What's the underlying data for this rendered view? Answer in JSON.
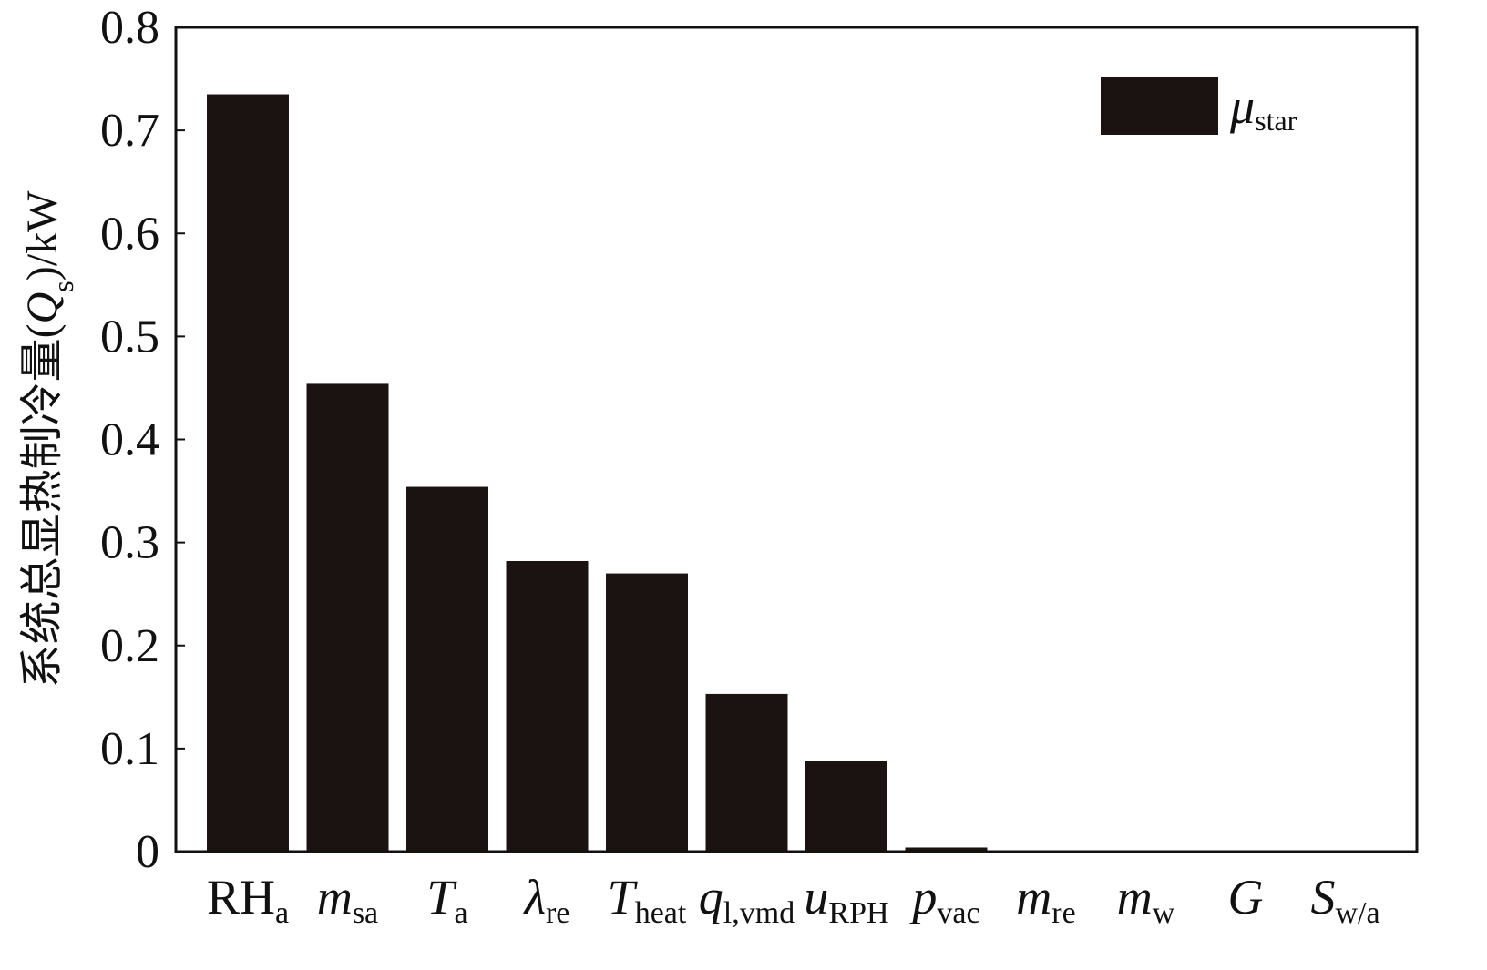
{
  "chart_data": {
    "type": "bar",
    "ylabel": [
      {
        "text": "系统总显热制冷量("
      },
      {
        "text": "Q",
        "italic": true
      },
      {
        "text": "s",
        "sub": true
      },
      {
        "text": ")/kW"
      }
    ],
    "categories": [
      {
        "text": "RH",
        "sub": "a",
        "italic": false
      },
      {
        "text": "m",
        "sub": "sa",
        "italic": true
      },
      {
        "text": "T",
        "sub": "a",
        "italic": true
      },
      {
        "text": "λ",
        "sub": "re",
        "italic": true
      },
      {
        "text": "T",
        "sub": "heat",
        "italic": true
      },
      {
        "text": "q",
        "sub": "l,vmd",
        "italic": true
      },
      {
        "text": "u",
        "sub": "RPH",
        "italic": true
      },
      {
        "text": "p",
        "sub": "vac",
        "italic": true
      },
      {
        "text": "m",
        "sub": "re",
        "italic": true
      },
      {
        "text": "m",
        "sub": "w",
        "italic": true
      },
      {
        "text": "G",
        "italic": true
      },
      {
        "text": "S",
        "sub": "w/a",
        "italic": true
      }
    ],
    "series": [
      {
        "name": {
          "text": "μ",
          "sub": "star"
        },
        "color": "#1a1311",
        "values": [
          0.735,
          0.454,
          0.354,
          0.282,
          0.27,
          0.153,
          0.088,
          0.004,
          0,
          0,
          0,
          0
        ]
      }
    ],
    "ylim": [
      0,
      0.8
    ],
    "yticks": [
      0,
      0.1,
      0.2,
      0.3,
      0.4,
      0.5,
      0.6,
      0.7,
      0.8
    ],
    "legend": "upper right"
  }
}
